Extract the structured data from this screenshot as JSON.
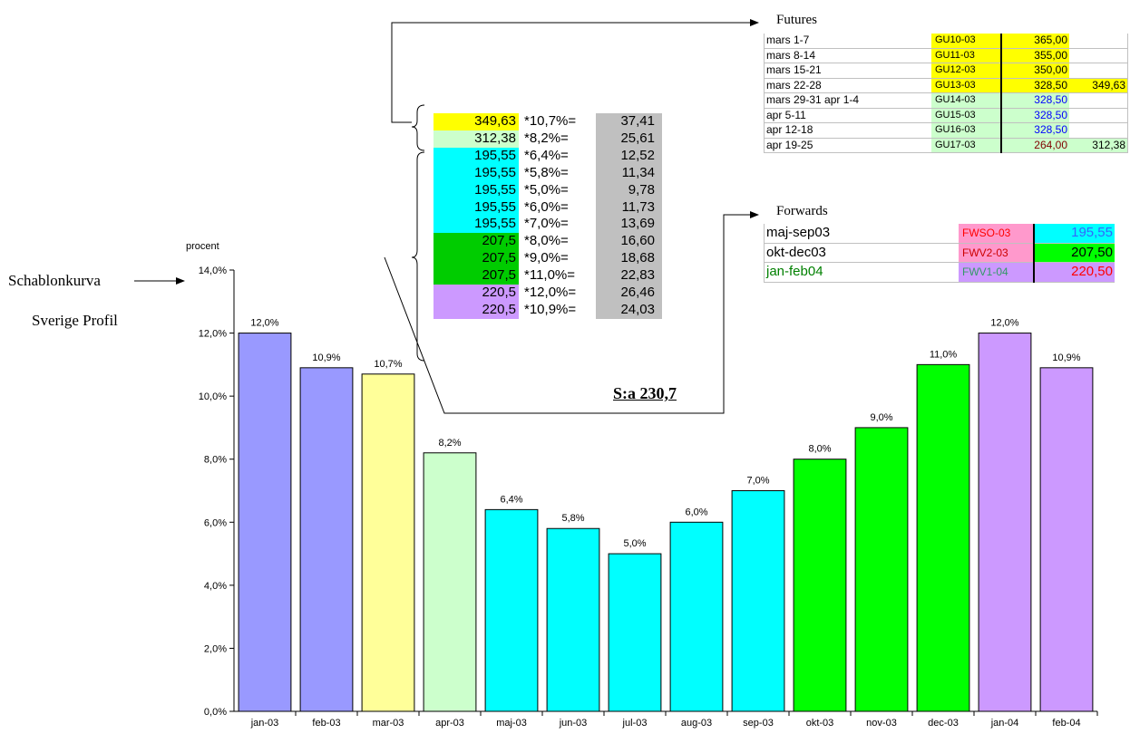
{
  "side_labels": {
    "line1": "Schablonkurva",
    "line2": "Sverige Profil"
  },
  "colors": {
    "blue_violet": "#9999ff",
    "light_yellow": "#ffff99",
    "light_green": "#ccffcc",
    "cyan": "#00ffff",
    "green": "#00ff00",
    "lilac": "#cc99ff",
    "yellow": "#ffff00",
    "gray": "#c0c0c0"
  },
  "chart_data": {
    "type": "bar",
    "title": "",
    "xlabel": "",
    "ylabel": "procent",
    "ylim": [
      0,
      14
    ],
    "yticks": [
      "0,0%",
      "2,0%",
      "4,0%",
      "6,0%",
      "8,0%",
      "10,0%",
      "12,0%",
      "14,0%"
    ],
    "grid": false,
    "categories": [
      "jan-03",
      "feb-03",
      "mar-03",
      "apr-03",
      "maj-03",
      "jun-03",
      "jul-03",
      "aug-03",
      "sep-03",
      "okt-03",
      "nov-03",
      "dec-03",
      "jan-04",
      "feb-04"
    ],
    "values": [
      12.0,
      10.9,
      10.7,
      8.2,
      6.4,
      5.8,
      5.0,
      6.0,
      7.0,
      8.0,
      9.0,
      11.0,
      12.0,
      10.9
    ],
    "labels": [
      "12,0%",
      "10,9%",
      "10,7%",
      "8,2%",
      "6,4%",
      "5,8%",
      "5,0%",
      "6,0%",
      "7,0%",
      "8,0%",
      "9,0%",
      "11,0%",
      "12,0%",
      "10,9%"
    ],
    "bar_colors": [
      "#9999ff",
      "#9999ff",
      "#ffff99",
      "#ccffcc",
      "#00ffff",
      "#00ffff",
      "#00ffff",
      "#00ffff",
      "#00ffff",
      "#00ff00",
      "#00ff00",
      "#00ff00",
      "#cc99ff",
      "#cc99ff"
    ]
  },
  "calc_table": {
    "rows": [
      {
        "price": "349,63",
        "factor": "*10,7%=",
        "result": "37,41",
        "color": "#ffff00"
      },
      {
        "price": "312,38",
        "factor": "*8,2%=",
        "result": "25,61",
        "color": "#ccffcc"
      },
      {
        "price": "195,55",
        "factor": "*6,4%=",
        "result": "12,52",
        "color": "#00ffff"
      },
      {
        "price": "195,55",
        "factor": "*5,8%=",
        "result": "11,34",
        "color": "#00ffff"
      },
      {
        "price": "195,55",
        "factor": "*5,0%=",
        "result": "9,78",
        "color": "#00ffff"
      },
      {
        "price": "195,55",
        "factor": "*6,0%=",
        "result": "11,73",
        "color": "#00ffff"
      },
      {
        "price": "195,55",
        "factor": "*7,0%=",
        "result": "13,69",
        "color": "#00ffff"
      },
      {
        "price": "207,5",
        "factor": "*8,0%=",
        "result": "16,60",
        "color": "#00cc00"
      },
      {
        "price": "207,5",
        "factor": "*9,0%=",
        "result": "18,68",
        "color": "#00cc00"
      },
      {
        "price": "207,5",
        "factor": "*11,0%=",
        "result": "22,83",
        "color": "#00cc00"
      },
      {
        "price": "220,5",
        "factor": "*12,0%=",
        "result": "26,46",
        "color": "#cc99ff"
      },
      {
        "price": "220,5",
        "factor": "*10,9%=",
        "result": "24,03",
        "color": "#cc99ff"
      }
    ],
    "sum": "S:a 230,7"
  },
  "futures": {
    "title": "Futures",
    "rows": [
      {
        "name": "mars 1-7",
        "code": "GU10-03",
        "value": "365,00",
        "extra": "",
        "code_bg": "#ffff00",
        "value_bg": "#ffff00",
        "value_color": "#000000",
        "extra_bg": "#ffffff"
      },
      {
        "name": "mars 8-14",
        "code": "GU11-03",
        "value": "355,00",
        "extra": "",
        "code_bg": "#ffff00",
        "value_bg": "#ffff00",
        "value_color": "#000000",
        "extra_bg": "#ffffff"
      },
      {
        "name": "mars 15-21",
        "code": "GU12-03",
        "value": "350,00",
        "extra": "",
        "code_bg": "#ffff00",
        "value_bg": "#ffff00",
        "value_color": "#000000",
        "extra_bg": "#ffffff"
      },
      {
        "name": "mars 22-28",
        "code": "GU13-03",
        "value": "328,50",
        "extra": "349,63",
        "code_bg": "#ffff00",
        "value_bg": "#ffff00",
        "value_color": "#000000",
        "extra_bg": "#ffff00"
      },
      {
        "name": "mars 29-31 apr 1-4",
        "code": "GU14-03",
        "value": "328,50",
        "extra": "",
        "code_bg": "#ccffcc",
        "value_bg": "#ccffcc",
        "value_color": "#0000ff",
        "extra_bg": "#ffffff"
      },
      {
        "name": "apr 5-11",
        "code": "GU15-03",
        "value": "328,50",
        "extra": "",
        "code_bg": "#ccffcc",
        "value_bg": "#ccffcc",
        "value_color": "#0000ff",
        "extra_bg": "#ffffff"
      },
      {
        "name": "apr 12-18",
        "code": "GU16-03",
        "value": "328,50",
        "extra": "",
        "code_bg": "#ccffcc",
        "value_bg": "#ccffcc",
        "value_color": "#0000ff",
        "extra_bg": "#ffffff"
      },
      {
        "name": "apr 19-25",
        "code": "GU17-03",
        "value": "264,00",
        "extra": "312,38",
        "code_bg": "#ccffcc",
        "value_bg": "#ccffcc",
        "value_color": "#800000",
        "extra_bg": "#ccffcc"
      }
    ]
  },
  "forwards": {
    "title": "Forwards",
    "rows": [
      {
        "name": "maj-sep03",
        "code": "FWSO-03",
        "value": "195,55",
        "name_color": "#000000",
        "code_bg": "#ff99cc",
        "code_color": "#ff0000",
        "value_bg": "#00ffff",
        "value_color": "#3366ff"
      },
      {
        "name": "okt-dec03",
        "code": "FWV2-03",
        "value": "207,50",
        "name_color": "#000000",
        "code_bg": "#ff99cc",
        "code_color": "#cc0000",
        "value_bg": "#00ff00",
        "value_color": "#000000"
      },
      {
        "name": "jan-feb04",
        "code": "FWV1-04",
        "value": "220,50",
        "name_color": "#008000",
        "code_bg": "#cc99ff",
        "code_color": "#339966",
        "value_bg": "#cc99ff",
        "value_color": "#ff0000"
      }
    ]
  }
}
